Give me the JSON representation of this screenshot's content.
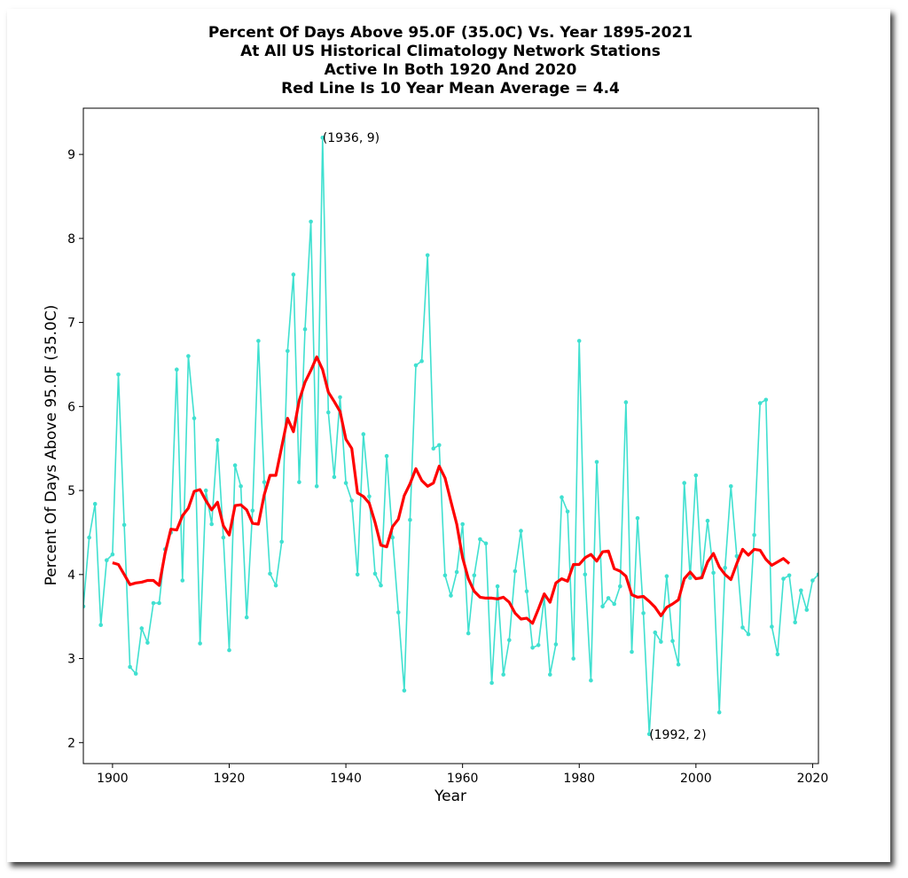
{
  "chart_data": {
    "type": "line",
    "title_lines": [
      "Percent Of Days Above 95.0F (35.0C) Vs. Year 1895-2021",
      "At All US Historical Climatology Network Stations",
      "Active In Both 1920 And 2020",
      "Red Line Is 10 Year Mean  Average = 4.4"
    ],
    "xlabel": "Year",
    "ylabel": "Percent Of Days Above 95.0F (35.0C)",
    "xlim": [
      1895,
      2021
    ],
    "ylim": [
      1.75,
      9.55
    ],
    "xticks": [
      1900,
      1920,
      1940,
      1960,
      1980,
      2000,
      2020
    ],
    "yticks": [
      2,
      3,
      4,
      5,
      6,
      7,
      8,
      9
    ],
    "grid": false,
    "colors": {
      "annual": "#40e0d0",
      "mean": "#ff0000"
    },
    "annotations": [
      {
        "text": "(1936, 9)",
        "x": 1936,
        "y": 9.2
      },
      {
        "text": "(1992, 2)",
        "x": 1992,
        "y": 2.1
      }
    ],
    "series": [
      {
        "x": [
          1895,
          1896,
          1897,
          1898,
          1899,
          1900,
          1901,
          1902,
          1903,
          1904,
          1905,
          1906,
          1907,
          1908,
          1909,
          1910,
          1911,
          1912,
          1913,
          1914,
          1915,
          1916,
          1917,
          1918,
          1919,
          1920,
          1921,
          1922,
          1923,
          1924,
          1925,
          1926,
          1927,
          1928,
          1929,
          1930,
          1931,
          1932,
          1933,
          1934,
          1935,
          1936,
          1937,
          1938,
          1939,
          1940,
          1941,
          1942,
          1943,
          1944,
          1945,
          1946,
          1947,
          1948,
          1949,
          1950,
          1951,
          1952,
          1953,
          1954,
          1955,
          1956,
          1957,
          1958,
          1959,
          1960,
          1961,
          1962,
          1963,
          1964,
          1965,
          1966,
          1967,
          1968,
          1969,
          1970,
          1971,
          1972,
          1973,
          1974,
          1975,
          1976,
          1977,
          1978,
          1979,
          1980,
          1981,
          1982,
          1983,
          1984,
          1985,
          1986,
          1987,
          1988,
          1989,
          1990,
          1991,
          1992,
          1993,
          1994,
          1995,
          1996,
          1997,
          1998,
          1999,
          2000,
          2001,
          2002,
          2003,
          2004,
          2005,
          2006,
          2007,
          2008,
          2009,
          2010,
          2011,
          2012,
          2013,
          2014,
          2015,
          2016,
          2017,
          2018,
          2019,
          2020,
          2021
        ],
        "values": [
          3.62,
          4.44,
          4.84,
          3.4,
          4.17,
          4.24,
          6.38,
          4.59,
          2.9,
          2.82,
          3.36,
          3.19,
          3.66,
          3.66,
          4.3,
          4.5,
          6.44,
          3.93,
          6.6,
          5.86,
          3.18,
          5.0,
          4.6,
          5.6,
          4.44,
          3.1,
          5.3,
          5.05,
          3.49,
          4.76,
          6.78,
          5.1,
          4.01,
          3.87,
          4.39,
          6.66,
          7.57,
          5.1,
          6.92,
          8.2,
          5.05,
          9.2,
          5.93,
          5.16,
          6.11,
          5.09,
          4.88,
          4.0,
          5.67,
          4.93,
          4.01,
          3.87,
          5.41,
          4.44,
          3.55,
          2.62,
          4.65,
          6.49,
          6.54,
          7.8,
          5.5,
          5.54,
          3.99,
          3.75,
          4.03,
          4.6,
          3.3,
          3.99,
          4.42,
          4.37,
          2.71,
          3.86,
          2.81,
          3.22,
          4.04,
          4.52,
          3.8,
          3.13,
          3.16,
          3.73,
          2.81,
          3.17,
          4.92,
          4.75,
          3.0,
          6.78,
          4.0,
          2.74,
          5.34,
          3.62,
          3.72,
          3.65,
          3.86,
          6.05,
          3.08,
          4.67,
          3.54,
          2.1,
          3.31,
          3.2,
          3.98,
          3.21,
          2.93,
          5.09,
          3.96,
          5.18,
          3.97,
          4.64,
          4.02,
          2.36,
          4.08,
          5.05,
          4.22,
          3.37,
          3.29,
          4.47,
          6.04,
          6.08,
          3.38,
          3.05,
          3.95,
          3.99,
          3.43,
          3.81,
          3.58,
          3.93,
          4.0
        ]
      },
      {
        "x": [
          1900,
          1901,
          1902,
          1903,
          1904,
          1905,
          1906,
          1907,
          1908,
          1909,
          1910,
          1911,
          1912,
          1913,
          1914,
          1915,
          1916,
          1917,
          1918,
          1919,
          1920,
          1921,
          1922,
          1923,
          1924,
          1925,
          1926,
          1927,
          1928,
          1929,
          1930,
          1931,
          1932,
          1933,
          1934,
          1935,
          1936,
          1937,
          1938,
          1939,
          1940,
          1941,
          1942,
          1943,
          1944,
          1945,
          1946,
          1947,
          1948,
          1949,
          1950,
          1951,
          1952,
          1953,
          1954,
          1955,
          1956,
          1957,
          1958,
          1959,
          1960,
          1961,
          1962,
          1963,
          1964,
          1965,
          1966,
          1967,
          1968,
          1969,
          1970,
          1971,
          1972,
          1973,
          1974,
          1975,
          1976,
          1977,
          1978,
          1979,
          1980,
          1981,
          1982,
          1983,
          1984,
          1985,
          1986,
          1987,
          1988,
          1989,
          1990,
          1991,
          1992,
          1993,
          1994,
          1995,
          1996,
          1997,
          1998,
          1999,
          2000,
          2001,
          2002,
          2003,
          2004,
          2005,
          2006,
          2007,
          2008,
          2009,
          2010,
          2011,
          2012,
          2013,
          2014,
          2015,
          2016
        ],
        "values": [
          4.14,
          4.12,
          4.0,
          3.88,
          3.9,
          3.91,
          3.93,
          3.93,
          3.87,
          4.25,
          4.54,
          4.53,
          4.7,
          4.79,
          4.99,
          5.01,
          4.88,
          4.77,
          4.86,
          4.58,
          4.47,
          4.82,
          4.83,
          4.77,
          4.61,
          4.6,
          4.95,
          5.18,
          5.18,
          5.52,
          5.86,
          5.7,
          6.07,
          6.29,
          6.43,
          6.59,
          6.44,
          6.17,
          6.06,
          5.94,
          5.61,
          5.5,
          4.97,
          4.93,
          4.85,
          4.62,
          4.35,
          4.33,
          4.57,
          4.66,
          4.94,
          5.08,
          5.26,
          5.12,
          5.05,
          5.09,
          5.29,
          5.15,
          4.87,
          4.6,
          4.2,
          3.95,
          3.8,
          3.73,
          3.72,
          3.72,
          3.71,
          3.73,
          3.67,
          3.54,
          3.47,
          3.48,
          3.42,
          3.59,
          3.77,
          3.67,
          3.9,
          3.95,
          3.92,
          4.12,
          4.12,
          4.2,
          4.24,
          4.16,
          4.27,
          4.28,
          4.07,
          4.04,
          3.98,
          3.76,
          3.73,
          3.74,
          3.68,
          3.61,
          3.51,
          3.61,
          3.65,
          3.7,
          3.95,
          4.03,
          3.95,
          3.96,
          4.15,
          4.25,
          4.09,
          4.0,
          3.94,
          4.13,
          4.3,
          4.23,
          4.3,
          4.29,
          4.18,
          4.11,
          4.15,
          4.19,
          4.13
        ]
      }
    ]
  }
}
